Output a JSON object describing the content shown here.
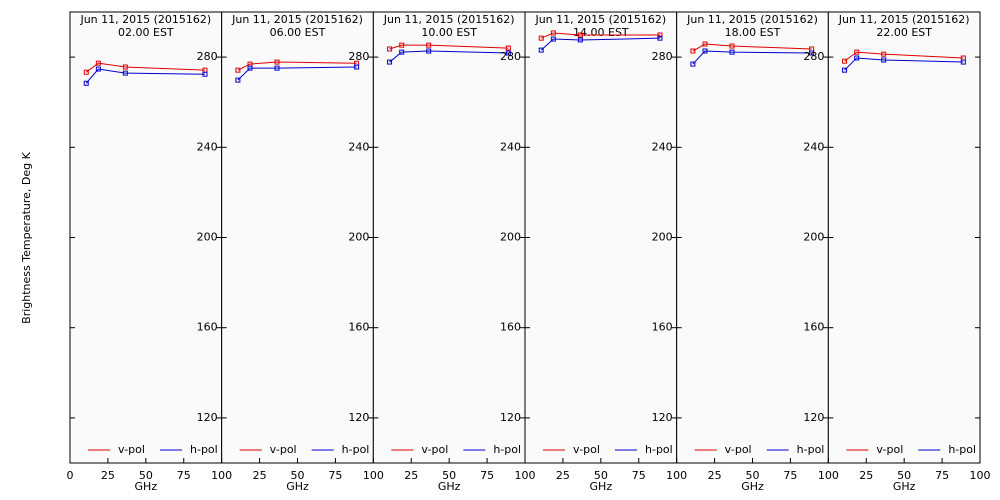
{
  "chart_data": [
    {
      "type": "line",
      "title": "Jun 11, 2015 (2015162)",
      "subtitle": "02.00 EST",
      "xlabel": "GHz",
      "ylabel": "Brightness Temperature, Deg K",
      "x": [
        10.7,
        18.7,
        36.5,
        89
      ],
      "xlim": [
        0,
        100
      ],
      "xticks": [
        0,
        25,
        50,
        75,
        100
      ],
      "ylim": [
        100,
        300
      ],
      "yticks": [
        120,
        160,
        200,
        240,
        280
      ],
      "ytick_labels": false,
      "series": [
        {
          "name": "v-pol",
          "color": "#e00000",
          "values": [
            273.3,
            277.3,
            275.6,
            274.2
          ]
        },
        {
          "name": "h-pol",
          "color": "#0000d0",
          "values": [
            268.4,
            274.7,
            272.9,
            272.4
          ]
        }
      ]
    },
    {
      "type": "line",
      "title": "Jun 11, 2015 (2015162)",
      "subtitle": "06.00 EST",
      "xlabel": "GHz",
      "x": [
        10.7,
        18.7,
        36.5,
        89
      ],
      "xlim": [
        0,
        100
      ],
      "xticks": [
        25,
        50,
        75,
        100
      ],
      "ylim": [
        100,
        300
      ],
      "yticks": [
        120,
        160,
        200,
        240,
        280
      ],
      "ytick_labels": true,
      "series": [
        {
          "name": "v-pol",
          "color": "#e00000",
          "values": [
            274.2,
            276.9,
            277.8,
            277.3
          ]
        },
        {
          "name": "h-pol",
          "color": "#0000d0",
          "values": [
            269.8,
            275.1,
            275.1,
            275.6
          ]
        }
      ]
    },
    {
      "type": "line",
      "title": "Jun 11, 2015 (2015162)",
      "subtitle": "10.00 EST",
      "xlabel": "GHz",
      "x": [
        10.7,
        18.7,
        36.5,
        89
      ],
      "xlim": [
        0,
        100
      ],
      "xticks": [
        25,
        50,
        75,
        100
      ],
      "ylim": [
        100,
        300
      ],
      "yticks": [
        120,
        160,
        200,
        240,
        280
      ],
      "ytick_labels": true,
      "series": [
        {
          "name": "v-pol",
          "color": "#e00000",
          "values": [
            283.6,
            285.3,
            285.3,
            284
          ]
        },
        {
          "name": "h-pol",
          "color": "#0000d0",
          "values": [
            277.8,
            282.2,
            282.7,
            281.8
          ]
        }
      ]
    },
    {
      "type": "line",
      "title": "Jun 11, 2015 (2015162)",
      "subtitle": "14.00 EST",
      "xlabel": "GHz",
      "x": [
        10.7,
        18.7,
        36.5,
        89
      ],
      "xlim": [
        0,
        100
      ],
      "xticks": [
        25,
        50,
        75,
        100
      ],
      "ylim": [
        100,
        300
      ],
      "yticks": [
        120,
        160,
        200,
        240,
        280
      ],
      "ytick_labels": true,
      "series": [
        {
          "name": "v-pol",
          "color": "#e00000",
          "values": [
            288.4,
            290.7,
            289.8,
            289.8
          ]
        },
        {
          "name": "h-pol",
          "color": "#0000d0",
          "values": [
            283.1,
            288,
            287.6,
            288.4
          ]
        }
      ]
    },
    {
      "type": "line",
      "title": "Jun 11, 2015 (2015162)",
      "subtitle": "18.00 EST",
      "xlabel": "GHz",
      "x": [
        10.7,
        18.7,
        36.5,
        89
      ],
      "xlim": [
        0,
        100
      ],
      "xticks": [
        25,
        50,
        75,
        100
      ],
      "ylim": [
        100,
        300
      ],
      "yticks": [
        120,
        160,
        200,
        240,
        280
      ],
      "ytick_labels": true,
      "series": [
        {
          "name": "v-pol",
          "color": "#e00000",
          "values": [
            282.7,
            285.8,
            284.9,
            283.6
          ]
        },
        {
          "name": "h-pol",
          "color": "#0000d0",
          "values": [
            276.9,
            282.7,
            282.2,
            281.8
          ]
        }
      ]
    },
    {
      "type": "line",
      "title": "Jun 11, 2015 (2015162)",
      "subtitle": "22.00 EST",
      "xlabel": "GHz",
      "x": [
        10.7,
        18.7,
        36.5,
        89
      ],
      "xlim": [
        0,
        100
      ],
      "xticks": [
        25,
        50,
        75,
        100
      ],
      "ylim": [
        100,
        300
      ],
      "yticks": [
        120,
        160,
        200,
        240,
        280
      ],
      "ytick_labels": true,
      "series": [
        {
          "name": "v-pol",
          "color": "#e00000",
          "values": [
            278.2,
            282.2,
            281.3,
            279.6
          ]
        },
        {
          "name": "h-pol",
          "color": "#0000d0",
          "values": [
            274.2,
            279.6,
            278.7,
            277.8
          ]
        }
      ]
    }
  ]
}
